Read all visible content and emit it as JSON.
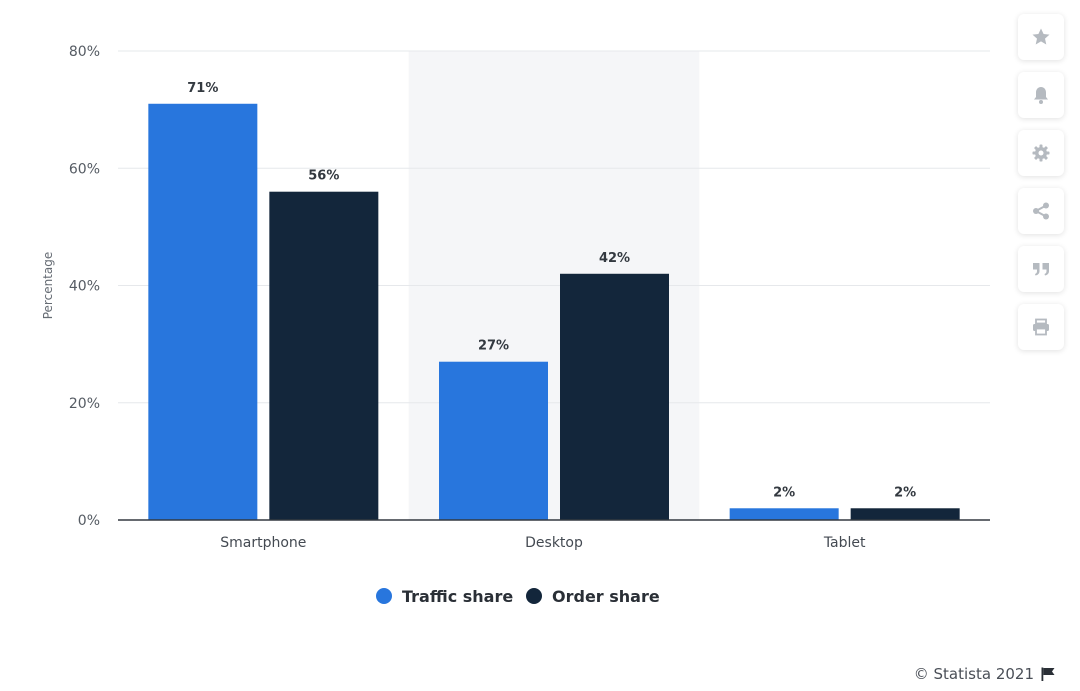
{
  "colors": {
    "traffic": "#2876dd",
    "order": "#13263b",
    "grid": "#e6e8eb",
    "axis": "#333940",
    "band": "#f5f6f8",
    "toolbar_icon": "#b5bac0"
  },
  "chart_data": {
    "type": "bar",
    "categories": [
      "Smartphone",
      "Desktop",
      "Tablet"
    ],
    "series": [
      {
        "name": "Traffic share",
        "values": [
          71,
          27,
          2
        ],
        "labels": [
          "71%",
          "27%",
          "2%"
        ]
      },
      {
        "name": "Order share",
        "values": [
          56,
          42,
          2
        ],
        "labels": [
          "56%",
          "42%",
          "2%"
        ]
      }
    ],
    "ylabel": "Percentage",
    "xlabel": "",
    "ylim": [
      0,
      80
    ],
    "yticks": [
      0,
      20,
      40,
      60,
      80
    ],
    "ytick_labels": [
      "0%",
      "20%",
      "40%",
      "60%",
      "80%"
    ],
    "grid": true,
    "legend_position": "bottom-center"
  },
  "toolbar": {
    "items": [
      {
        "name": "star-icon",
        "label": "Favorite"
      },
      {
        "name": "bell-icon",
        "label": "Notifications"
      },
      {
        "name": "gear-icon",
        "label": "Settings"
      },
      {
        "name": "share-icon",
        "label": "Share"
      },
      {
        "name": "quote-icon",
        "label": "Citation"
      },
      {
        "name": "print-icon",
        "label": "Print"
      }
    ]
  },
  "footer": {
    "credit": "© Statista 2021",
    "flag_icon": "flag-icon"
  }
}
